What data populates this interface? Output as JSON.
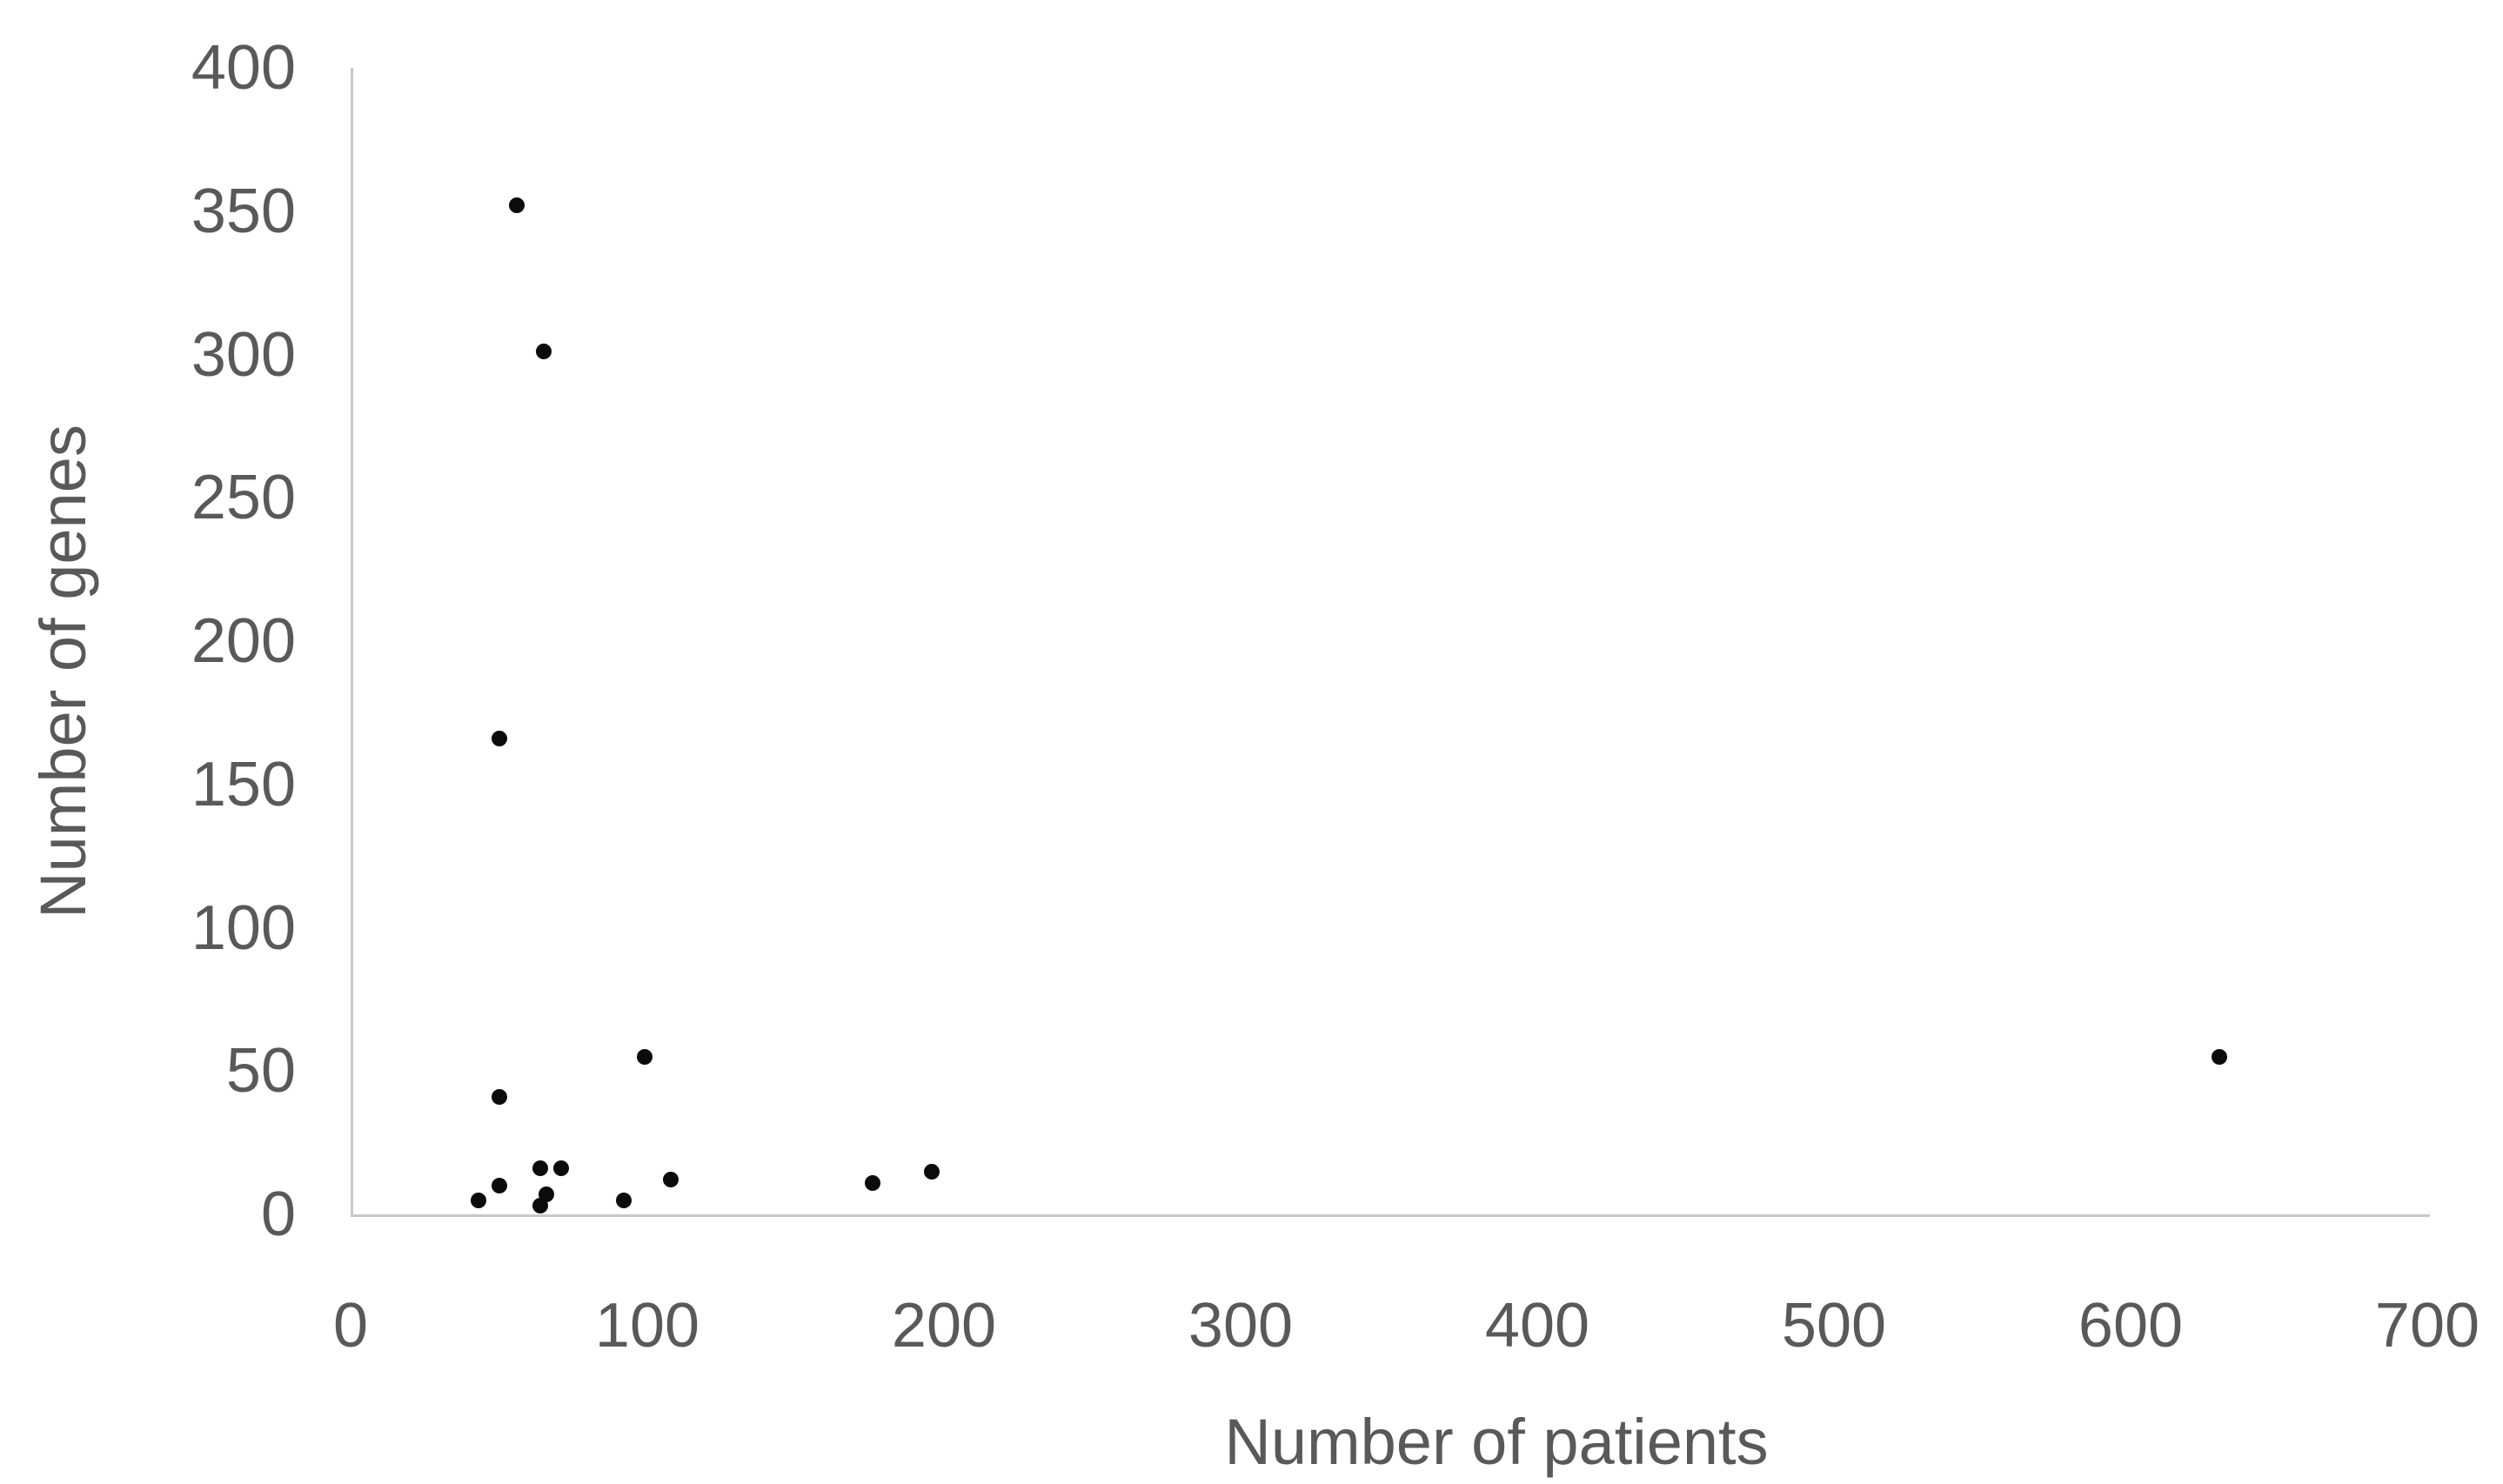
{
  "chart_data": {
    "type": "scatter",
    "title": "",
    "xlabel": "Number of patients",
    "ylabel": "Number of genes",
    "xlim": [
      0,
      700
    ],
    "ylim": [
      0,
      400
    ],
    "x_ticks": [
      0,
      100,
      200,
      300,
      400,
      500,
      600,
      700
    ],
    "y_ticks": [
      0,
      50,
      100,
      150,
      200,
      250,
      300,
      350,
      400
    ],
    "grid": false,
    "legend": null,
    "marker": "circle",
    "marker_color": "#0b0b0b",
    "axis_line_color": "#c9c9c9",
    "label_color": "#595959",
    "background_color": "#ffffff",
    "points": [
      {
        "x": 43,
        "y": 5
      },
      {
        "x": 50,
        "y": 10
      },
      {
        "x": 50,
        "y": 41
      },
      {
        "x": 50,
        "y": 166
      },
      {
        "x": 56,
        "y": 352
      },
      {
        "x": 64,
        "y": 3
      },
      {
        "x": 64,
        "y": 16
      },
      {
        "x": 65,
        "y": 301
      },
      {
        "x": 66,
        "y": 7
      },
      {
        "x": 71,
        "y": 16
      },
      {
        "x": 92,
        "y": 5
      },
      {
        "x": 99,
        "y": 55
      },
      {
        "x": 108,
        "y": 12
      },
      {
        "x": 176,
        "y": 11
      },
      {
        "x": 196,
        "y": 15
      },
      {
        "x": 630,
        "y": 55
      }
    ]
  }
}
